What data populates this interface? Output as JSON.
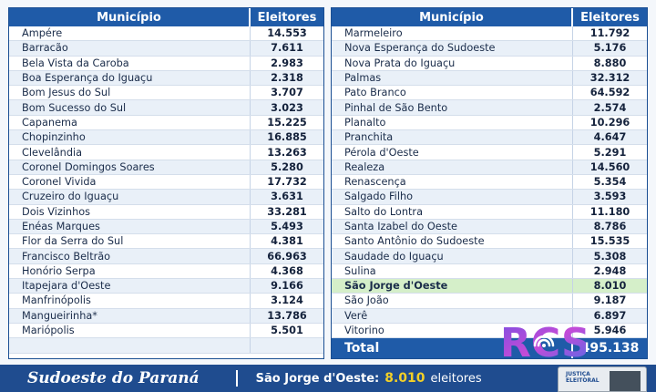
{
  "header": {
    "municipio": "Município",
    "eleitores": "Eleitores"
  },
  "left_table": [
    {
      "municipio": "Ampére",
      "eleitores": "14.553"
    },
    {
      "municipio": "Barracão",
      "eleitores": "7.611"
    },
    {
      "municipio": "Bela Vista da Caroba",
      "eleitores": "2.983"
    },
    {
      "municipio": "Boa Esperança do Iguaçu",
      "eleitores": "2.318"
    },
    {
      "municipio": "Bom Jesus do Sul",
      "eleitores": "3.707"
    },
    {
      "municipio": "Bom Sucesso do Sul",
      "eleitores": "3.023"
    },
    {
      "municipio": "Capanema",
      "eleitores": "15.225"
    },
    {
      "municipio": "Chopinzinho",
      "eleitores": "16.885"
    },
    {
      "municipio": "Clevelândia",
      "eleitores": "13.263"
    },
    {
      "municipio": "Coronel Domingos Soares",
      "eleitores": "5.280"
    },
    {
      "municipio": "Coronel Vivida",
      "eleitores": "17.732"
    },
    {
      "municipio": "Cruzeiro do Iguaçu",
      "eleitores": "3.631"
    },
    {
      "municipio": "Dois Vizinhos",
      "eleitores": "33.281"
    },
    {
      "municipio": "Enéas Marques",
      "eleitores": "5.493"
    },
    {
      "municipio": "Flor da Serra do Sul",
      "eleitores": "4.381"
    },
    {
      "municipio": "Francisco Beltrão",
      "eleitores": "66.963"
    },
    {
      "municipio": "Honório Serpa",
      "eleitores": "4.368"
    },
    {
      "municipio": "Itapejara d'Oeste",
      "eleitores": "9.166"
    },
    {
      "municipio": "Manfrinópolis",
      "eleitores": "3.124"
    },
    {
      "municipio": "Mangueirinha*",
      "eleitores": "13.786"
    },
    {
      "municipio": "Mariópolis",
      "eleitores": "5.501"
    }
  ],
  "right_table": [
    {
      "municipio": "Marmeleiro",
      "eleitores": "11.792"
    },
    {
      "municipio": "Nova Esperança do Sudoeste",
      "eleitores": "5.176"
    },
    {
      "municipio": "Nova Prata do Iguaçu",
      "eleitores": "8.880"
    },
    {
      "municipio": "Palmas",
      "eleitores": "32.312"
    },
    {
      "municipio": "Pato Branco",
      "eleitores": "64.592"
    },
    {
      "municipio": "Pinhal de São Bento",
      "eleitores": "2.574"
    },
    {
      "municipio": "Planalto",
      "eleitores": "10.296"
    },
    {
      "municipio": "Pranchita",
      "eleitores": "4.647"
    },
    {
      "municipio": "Pérola d'Oeste",
      "eleitores": "5.291"
    },
    {
      "municipio": "Realeza",
      "eleitores": "14.560"
    },
    {
      "municipio": "Renascença",
      "eleitores": "5.354"
    },
    {
      "municipio": "Salgado Filho",
      "eleitores": "3.593"
    },
    {
      "municipio": "Salto do Lontra",
      "eleitores": "11.180"
    },
    {
      "municipio": "Santa Izabel do Oeste",
      "eleitores": "8.786"
    },
    {
      "municipio": "Santo Antônio do Sudoeste",
      "eleitores": "15.535"
    },
    {
      "municipio": "Saudade do Iguaçu",
      "eleitores": "5.308"
    },
    {
      "municipio": "Sulina",
      "eleitores": "2.948"
    },
    {
      "municipio": "São Jorge d'Oeste",
      "eleitores": "8.010",
      "highlight": true
    },
    {
      "municipio": "São João",
      "eleitores": "9.187"
    },
    {
      "municipio": "Verê",
      "eleitores": "6.897"
    },
    {
      "municipio": "Vitorino",
      "eleitores": "5.946"
    }
  ],
  "total": {
    "label": "Total",
    "value": "495.138"
  },
  "footer": {
    "region": "Sudoeste do Paraná",
    "city_label": "São Jorge d'Oeste:",
    "city_count": "8.010",
    "unit": "eleitores"
  },
  "logo": {
    "text": "RCS",
    "icon": "radio-waves-icon"
  },
  "urn": {
    "label_line1": "JUSTIÇA",
    "label_line2": "ELEITORAL"
  },
  "colors": {
    "header_blue": "#1f5ba8",
    "highlight_green": "#d5efc9",
    "footer_blue": "#1f4c8f",
    "footer_accent": "#f3d027"
  }
}
